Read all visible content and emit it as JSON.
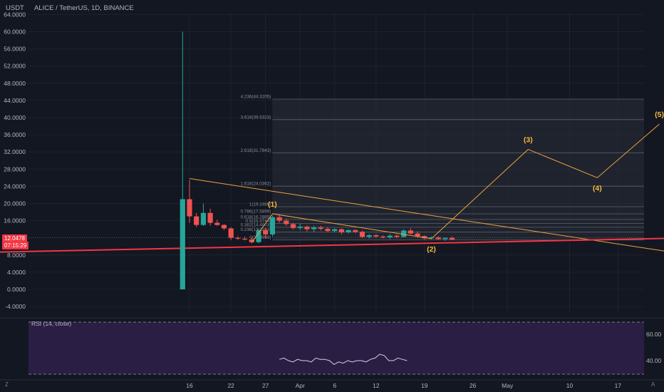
{
  "header": {
    "left_label": "USDT",
    "symbol": "ALICE / TetherUS, 1D, BINANCE"
  },
  "price_tag": {
    "price": "12.0478",
    "countdown": "07:15:29"
  },
  "rsi": {
    "label": "RSI (14, close)",
    "levels": [
      "60.00",
      "40.00"
    ],
    "upper_band": 70,
    "lower_band": 30
  },
  "bottom_bar": {
    "left_icon": "Z",
    "right_icon": "A"
  },
  "colors": {
    "background": "#131722",
    "up": "#26a69a",
    "down": "#ef5350",
    "wave": "#f0a23c",
    "trendline": "#f23645",
    "rsi_band": "#2a1e45",
    "rsi_line": "#d1d4dc"
  },
  "chart_data": {
    "type": "candlestick",
    "title": "ALICE / TetherUS, 1D, BINANCE",
    "x_ticks": [
      "16",
      "22",
      "27",
      "Apr",
      "6",
      "12",
      "19",
      "26",
      "May",
      "10",
      "17"
    ],
    "y_ticks": [
      "64.0000",
      "60.0000",
      "56.0000",
      "52.0000",
      "48.0000",
      "44.0000",
      "40.0000",
      "36.0000",
      "32.0000",
      "28.0000",
      "24.0000",
      "20.0000",
      "16.0000",
      "8.0000",
      "4.0000",
      "0.0000",
      "-4.0000"
    ],
    "ylim": [
      -4,
      64
    ],
    "candles": [
      {
        "date": "2021-03-15",
        "open": 0.0,
        "high": 60.0,
        "low": 0.0,
        "close": 21.0
      },
      {
        "date": "2021-03-16",
        "open": 21.0,
        "high": 25.5,
        "low": 15.5,
        "close": 17.0
      },
      {
        "date": "2021-03-17",
        "open": 17.0,
        "high": 17.8,
        "low": 14.5,
        "close": 15.0
      },
      {
        "date": "2021-03-18",
        "open": 15.0,
        "high": 20.0,
        "low": 14.8,
        "close": 17.8
      },
      {
        "date": "2021-03-19",
        "open": 17.8,
        "high": 18.8,
        "low": 14.8,
        "close": 15.5
      },
      {
        "date": "2021-03-20",
        "open": 15.5,
        "high": 16.2,
        "low": 14.8,
        "close": 15.0
      },
      {
        "date": "2021-03-21",
        "open": 15.0,
        "high": 15.2,
        "low": 13.8,
        "close": 14.2
      },
      {
        "date": "2021-03-22",
        "open": 14.2,
        "high": 14.5,
        "low": 11.5,
        "close": 12.0
      },
      {
        "date": "2021-03-23",
        "open": 12.0,
        "high": 12.4,
        "low": 11.5,
        "close": 11.8
      },
      {
        "date": "2021-03-24",
        "open": 11.8,
        "high": 12.3,
        "low": 11.4,
        "close": 11.6
      },
      {
        "date": "2021-03-25",
        "open": 11.6,
        "high": 12.0,
        "low": 10.7,
        "close": 11.0
      },
      {
        "date": "2021-03-26",
        "open": 11.0,
        "high": 14.2,
        "low": 10.7,
        "close": 13.8
      },
      {
        "date": "2021-03-27",
        "open": 13.8,
        "high": 14.2,
        "low": 11.8,
        "close": 12.8
      },
      {
        "date": "2021-03-28",
        "open": 12.8,
        "high": 17.2,
        "low": 12.3,
        "close": 16.8
      },
      {
        "date": "2021-03-29",
        "open": 16.8,
        "high": 17.4,
        "low": 15.5,
        "close": 16.0
      },
      {
        "date": "2021-03-30",
        "open": 16.0,
        "high": 16.5,
        "low": 14.8,
        "close": 15.2
      },
      {
        "date": "2021-03-31",
        "open": 15.2,
        "high": 15.5,
        "low": 13.9,
        "close": 14.3
      },
      {
        "date": "2021-04-01",
        "open": 14.3,
        "high": 15.3,
        "low": 13.8,
        "close": 14.6
      },
      {
        "date": "2021-04-02",
        "open": 14.6,
        "high": 14.9,
        "low": 13.5,
        "close": 14.0
      },
      {
        "date": "2021-04-03",
        "open": 14.0,
        "high": 14.8,
        "low": 13.4,
        "close": 14.4
      },
      {
        "date": "2021-04-04",
        "open": 14.4,
        "high": 14.8,
        "low": 13.7,
        "close": 14.1
      },
      {
        "date": "2021-04-05",
        "open": 14.1,
        "high": 14.5,
        "low": 13.3,
        "close": 13.6
      },
      {
        "date": "2021-04-06",
        "open": 13.6,
        "high": 14.3,
        "low": 13.3,
        "close": 14.0
      },
      {
        "date": "2021-04-07",
        "open": 14.0,
        "high": 14.2,
        "low": 12.8,
        "close": 13.3
      },
      {
        "date": "2021-04-08",
        "open": 13.3,
        "high": 14.0,
        "low": 13.0,
        "close": 13.8
      },
      {
        "date": "2021-04-09",
        "open": 13.8,
        "high": 14.0,
        "low": 13.1,
        "close": 13.4
      },
      {
        "date": "2021-04-10",
        "open": 13.4,
        "high": 13.7,
        "low": 11.9,
        "close": 12.2
      },
      {
        "date": "2021-04-11",
        "open": 12.2,
        "high": 12.9,
        "low": 11.8,
        "close": 12.6
      },
      {
        "date": "2021-04-12",
        "open": 12.6,
        "high": 12.9,
        "low": 12.0,
        "close": 12.3
      },
      {
        "date": "2021-04-13",
        "open": 12.3,
        "high": 12.6,
        "low": 11.9,
        "close": 12.1
      },
      {
        "date": "2021-04-14",
        "open": 12.1,
        "high": 12.9,
        "low": 11.7,
        "close": 12.5
      },
      {
        "date": "2021-04-15",
        "open": 12.5,
        "high": 12.8,
        "low": 11.9,
        "close": 12.2
      },
      {
        "date": "2021-04-16",
        "open": 12.2,
        "high": 14.0,
        "low": 12.1,
        "close": 13.7
      },
      {
        "date": "2021-04-17",
        "open": 13.7,
        "high": 14.2,
        "low": 12.8,
        "close": 13.0
      },
      {
        "date": "2021-04-18",
        "open": 13.0,
        "high": 13.5,
        "low": 12.0,
        "close": 12.4
      },
      {
        "date": "2021-04-19",
        "open": 12.4,
        "high": 12.6,
        "low": 11.6,
        "close": 11.9
      },
      {
        "date": "2021-04-20",
        "open": 11.9,
        "high": 12.3,
        "low": 11.7,
        "close": 12.1
      },
      {
        "date": "2021-04-21",
        "open": 12.1,
        "high": 12.4,
        "low": 11.6,
        "close": 11.7
      },
      {
        "date": "2021-04-22",
        "open": 11.7,
        "high": 12.1,
        "low": 11.3,
        "close": 12.0
      },
      {
        "date": "2021-04-23",
        "open": 12.0,
        "high": 12.3,
        "low": 11.5,
        "close": 11.6
      }
    ],
    "fib_levels": [
      {
        "ratio": "4.236",
        "price": "44.3205"
      },
      {
        "ratio": "3.618",
        "price": "39.5323"
      },
      {
        "ratio": "2.618",
        "price": "31.7843"
      },
      {
        "ratio": "1.618",
        "price": "24.0362"
      },
      {
        "ratio": "1",
        "price": "19.2480"
      },
      {
        "ratio": "0.786",
        "price": "17.5899"
      },
      {
        "ratio": "0.618",
        "price": "16.2885"
      },
      {
        "ratio": "0.5",
        "price": "15.3744"
      },
      {
        "ratio": "0.382",
        "price": "14.4603"
      },
      {
        "ratio": "0.236",
        "price": "13.3293"
      },
      {
        "ratio": "0",
        "price": "11.4999"
      }
    ],
    "elliott_waves": [
      {
        "label": "(1)",
        "date": "2021-03-28",
        "price": 17.6
      },
      {
        "label": "(2)",
        "date": "2021-04-20",
        "price": 11.8
      },
      {
        "label": "(3)",
        "date": "2021-05-04",
        "price": 32.6
      },
      {
        "label": "(4)",
        "date": "2021-05-14",
        "price": 26.0
      },
      {
        "label": "(5)",
        "date": "2021-05-23",
        "price": 38.5
      }
    ],
    "wave_start": {
      "date": "2021-03-25",
      "price": 10.9
    },
    "resistance_line": [
      {
        "date": "2021-03-16",
        "price": 25.8
      },
      {
        "date": "2021-06-27",
        "price": 0.5
      }
    ],
    "support_line": [
      {
        "date": "2021-01-31",
        "price": 8.7
      },
      {
        "date": "2021-06-27",
        "price": 13.0
      }
    ],
    "current_price": 12.0478,
    "rsi_values": [
      41,
      42,
      40,
      39,
      41,
      40,
      40,
      39,
      42,
      41,
      41,
      40,
      37,
      39,
      38,
      40,
      39,
      40,
      40,
      39,
      41,
      42,
      45,
      44,
      40,
      40,
      42,
      41,
      40
    ]
  }
}
